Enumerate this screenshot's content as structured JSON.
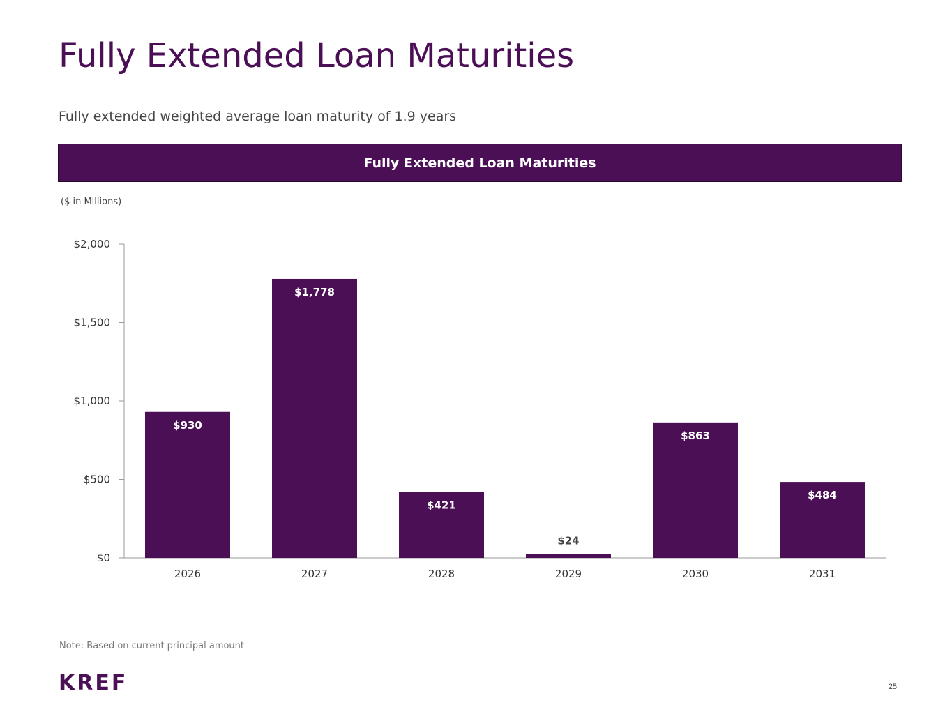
{
  "header": {
    "title": "Fully Extended Loan Maturities",
    "subtitle": "Fully extended weighted average loan maturity of 1.9 years"
  },
  "banner": {
    "label": "Fully Extended Loan Maturities"
  },
  "units_label": "($ in Millions)",
  "footer": {
    "note": "Note: Based on current principal amount",
    "logo": "KREF",
    "page_number": "25"
  },
  "colors": {
    "accent": "#4a0f55"
  },
  "chart_data": {
    "type": "bar",
    "title": "",
    "xlabel": "",
    "ylabel": "",
    "categories": [
      "2026",
      "2027",
      "2028",
      "2029",
      "2030",
      "2031"
    ],
    "values": [
      930,
      1778,
      421,
      24,
      863,
      484
    ],
    "data_labels": [
      "$930",
      "$1,778",
      "$421",
      "$24",
      "$863",
      "$484"
    ],
    "ylim": [
      0,
      2000
    ],
    "yticks": [
      0,
      500,
      1000,
      1500,
      2000
    ],
    "ytick_labels": [
      "$0",
      "$500",
      "$1,000",
      "$1,500",
      "$2,000"
    ],
    "grid": false,
    "legend": "none"
  }
}
